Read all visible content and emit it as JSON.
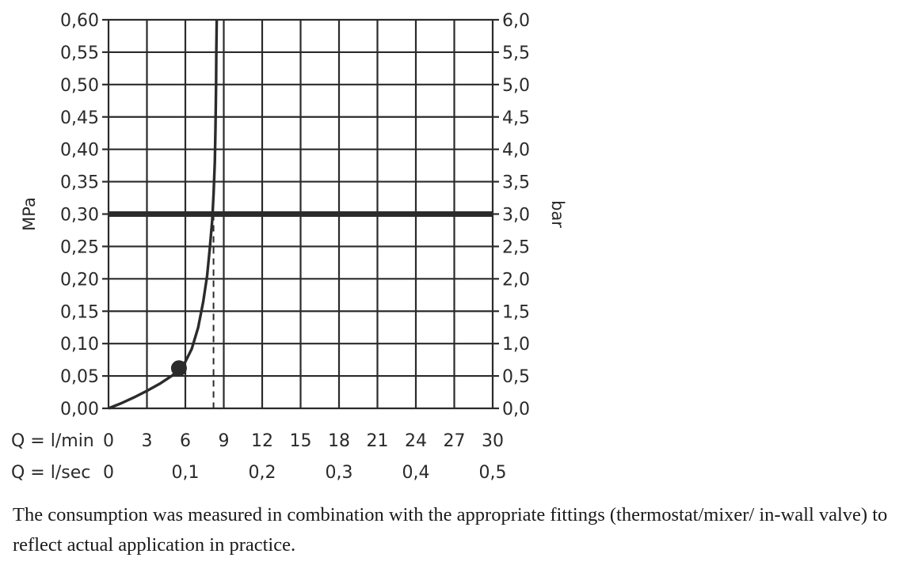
{
  "chart_data": {
    "type": "line",
    "xlim": [
      0,
      30
    ],
    "ylim": [
      0,
      0.6
    ],
    "x_ticks": [
      "0",
      "3",
      "6",
      "9",
      "12",
      "15",
      "18",
      "21",
      "24",
      "27",
      "30"
    ],
    "x_tick_values": [
      0,
      3,
      6,
      9,
      12,
      15,
      18,
      21,
      24,
      27,
      30
    ],
    "x2_ticks": [
      "0",
      "0,1",
      "0,2",
      "0,3",
      "0,4",
      "0,5"
    ],
    "x2_tick_values": [
      0,
      6,
      12,
      18,
      24,
      30
    ],
    "y_ticks": [
      "0,00",
      "0,05",
      "0,10",
      "0,15",
      "0,20",
      "0,25",
      "0,30",
      "0,35",
      "0,40",
      "0,45",
      "0,50",
      "0,55",
      "0,60"
    ],
    "y_tick_values": [
      0,
      0.05,
      0.1,
      0.15,
      0.2,
      0.25,
      0.3,
      0.35,
      0.4,
      0.45,
      0.5,
      0.55,
      0.6
    ],
    "y2_ticks": [
      "0,0",
      "0,5",
      "1,0",
      "1,5",
      "2,0",
      "2,5",
      "3,0",
      "3,5",
      "4,0",
      "4,5",
      "5,0",
      "5,5",
      "6,0"
    ],
    "ylabel": "MPa",
    "y2label": "bar",
    "x_row1_label": "Q = l/min",
    "x_row2_label": "Q = l/sec",
    "grid": true,
    "series": [
      {
        "x": [
          0,
          1,
          2,
          3,
          4,
          5,
          5.5,
          6,
          6.5,
          7,
          7.4,
          7.7,
          7.9,
          8.1,
          8.2,
          8.3,
          8.35,
          8.4,
          8.42,
          8.45
        ],
        "y": [
          0,
          0.008,
          0.017,
          0.027,
          0.038,
          0.051,
          0.06,
          0.072,
          0.092,
          0.125,
          0.165,
          0.205,
          0.245,
          0.29,
          0.33,
          0.38,
          0.43,
          0.5,
          0.55,
          0.6
        ]
      }
    ],
    "markers": [
      {
        "x": 5.5,
        "y": 0.062
      }
    ],
    "reference_hline": {
      "y": 0.3
    },
    "reference_vline_dashed": {
      "x": 8.2
    }
  },
  "caption": "The consumption was measured in combination with the appropriate fittings (thermostat/mixer/ in-wall valve) to reflect actual application in practice."
}
